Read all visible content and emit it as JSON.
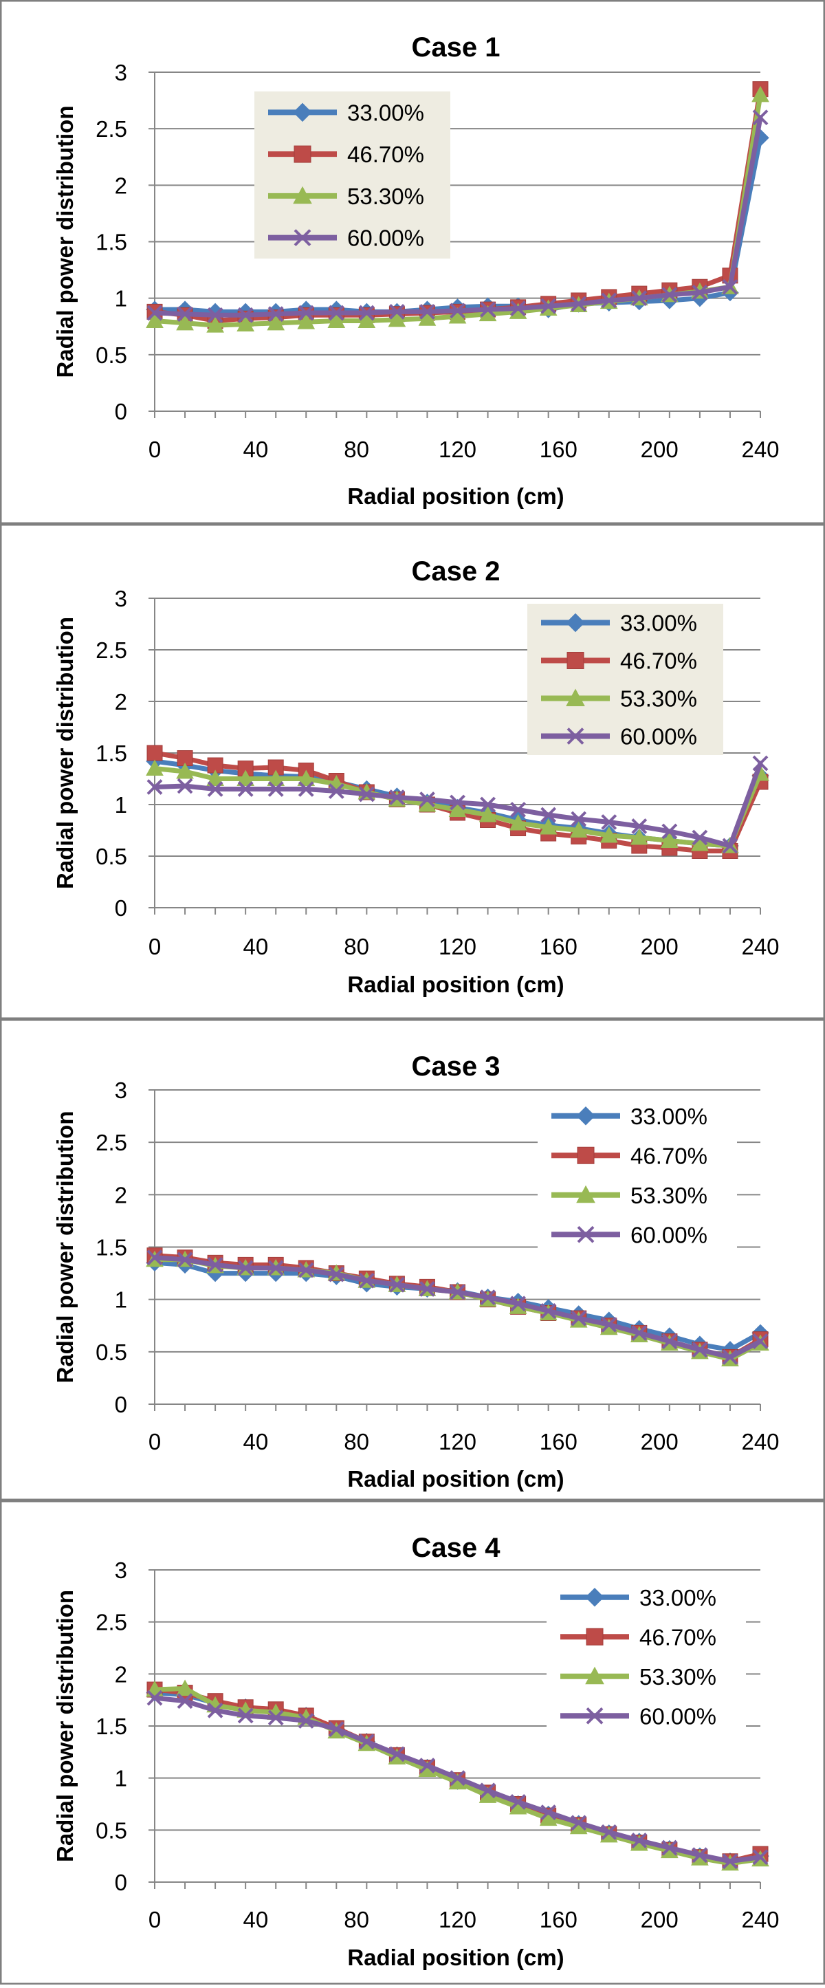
{
  "figure": {
    "panels": [
      "Case 1",
      "Case 2",
      "Case 3",
      "Case 4"
    ]
  },
  "chart_data": [
    {
      "type": "line",
      "title": "Case 1",
      "xlabel": "Radial position (cm)",
      "ylabel": "Radial power distribution",
      "xlim": [
        0,
        240
      ],
      "ylim": [
        0,
        3
      ],
      "xticks": [
        "0",
        "40",
        "80",
        "120",
        "160",
        "200",
        "240"
      ],
      "yticks": [
        "0",
        "0.5",
        "1",
        "1.5",
        "2",
        "2.5",
        "3"
      ],
      "grid": true,
      "legend": {
        "placement": "top-left",
        "boxed": true
      },
      "x": [
        0,
        12,
        24,
        36,
        48,
        60,
        72,
        84,
        96,
        108,
        120,
        132,
        144,
        156,
        168,
        180,
        192,
        204,
        216,
        228,
        240
      ],
      "series": [
        {
          "name": "33.00%",
          "color": "#4a7ebb",
          "marker": "diamond",
          "values": [
            0.9,
            0.9,
            0.88,
            0.88,
            0.88,
            0.9,
            0.9,
            0.88,
            0.88,
            0.9,
            0.92,
            0.93,
            0.93,
            0.9,
            0.95,
            0.96,
            0.97,
            0.98,
            1.0,
            1.05,
            2.42
          ]
        },
        {
          "name": "46.70%",
          "color": "#be4b48",
          "marker": "square",
          "values": [
            0.88,
            0.85,
            0.8,
            0.82,
            0.83,
            0.85,
            0.85,
            0.85,
            0.86,
            0.87,
            0.88,
            0.9,
            0.92,
            0.95,
            0.98,
            1.01,
            1.04,
            1.07,
            1.1,
            1.2,
            2.85
          ]
        },
        {
          "name": "53.30%",
          "color": "#98b954",
          "marker": "triangle",
          "values": [
            0.8,
            0.78,
            0.76,
            0.77,
            0.78,
            0.79,
            0.8,
            0.8,
            0.81,
            0.82,
            0.84,
            0.86,
            0.88,
            0.91,
            0.94,
            0.97,
            1.0,
            1.03,
            1.06,
            1.1,
            2.8
          ]
        },
        {
          "name": "60.00%",
          "color": "#7d5fa0",
          "marker": "x",
          "values": [
            0.87,
            0.86,
            0.85,
            0.85,
            0.86,
            0.87,
            0.87,
            0.87,
            0.88,
            0.88,
            0.89,
            0.9,
            0.91,
            0.93,
            0.95,
            0.98,
            1.0,
            1.03,
            1.05,
            1.1,
            2.6
          ]
        }
      ]
    },
    {
      "type": "line",
      "title": "Case 2",
      "xlabel": "Radial position (cm)",
      "ylabel": "Radial power distribution",
      "xlim": [
        0,
        240
      ],
      "ylim": [
        0,
        3
      ],
      "xticks": [
        "0",
        "40",
        "80",
        "120",
        "160",
        "200",
        "240"
      ],
      "yticks": [
        "0",
        "0.5",
        "1",
        "1.5",
        "2",
        "2.5",
        "3"
      ],
      "grid": true,
      "legend": {
        "placement": "top-right",
        "boxed": true
      },
      "x": [
        0,
        12,
        24,
        36,
        48,
        60,
        72,
        84,
        96,
        108,
        120,
        132,
        144,
        156,
        168,
        180,
        192,
        204,
        216,
        228,
        240
      ],
      "series": [
        {
          "name": "33.00%",
          "color": "#4a7ebb",
          "marker": "diamond",
          "values": [
            1.42,
            1.38,
            1.33,
            1.3,
            1.28,
            1.27,
            1.22,
            1.15,
            1.08,
            1.02,
            0.97,
            0.92,
            0.85,
            0.8,
            0.77,
            0.72,
            0.68,
            0.65,
            0.62,
            0.6,
            1.28
          ]
        },
        {
          "name": "46.70%",
          "color": "#be4b48",
          "marker": "square",
          "values": [
            1.5,
            1.45,
            1.38,
            1.35,
            1.36,
            1.33,
            1.23,
            1.12,
            1.05,
            1.0,
            0.92,
            0.85,
            0.77,
            0.72,
            0.69,
            0.65,
            0.6,
            0.58,
            0.55,
            0.55,
            1.22
          ]
        },
        {
          "name": "53.30%",
          "color": "#98b954",
          "marker": "triangle",
          "values": [
            1.35,
            1.32,
            1.25,
            1.25,
            1.25,
            1.25,
            1.2,
            1.12,
            1.05,
            1.0,
            0.95,
            0.9,
            0.82,
            0.78,
            0.75,
            0.7,
            0.68,
            0.65,
            0.62,
            0.6,
            1.3
          ]
        },
        {
          "name": "60.00%",
          "color": "#7d5fa0",
          "marker": "x",
          "values": [
            1.17,
            1.18,
            1.15,
            1.15,
            1.15,
            1.15,
            1.13,
            1.1,
            1.07,
            1.05,
            1.02,
            1.0,
            0.95,
            0.9,
            0.86,
            0.83,
            0.79,
            0.74,
            0.68,
            0.6,
            1.4
          ]
        }
      ]
    },
    {
      "type": "line",
      "title": "Case 3",
      "xlabel": "Radial position (cm)",
      "ylabel": "Radial power distribution",
      "xlim": [
        0,
        240
      ],
      "ylim": [
        0,
        3
      ],
      "xticks": [
        "0",
        "40",
        "80",
        "120",
        "160",
        "200",
        "240"
      ],
      "yticks": [
        "0",
        "0.5",
        "1",
        "1.5",
        "2",
        "2.5",
        "3"
      ],
      "grid": true,
      "legend": {
        "placement": "top-right",
        "boxed": false
      },
      "x": [
        0,
        12,
        24,
        36,
        48,
        60,
        72,
        84,
        96,
        108,
        120,
        132,
        144,
        156,
        168,
        180,
        192,
        204,
        216,
        228,
        240
      ],
      "series": [
        {
          "name": "33.00%",
          "color": "#4a7ebb",
          "marker": "diamond",
          "values": [
            1.35,
            1.33,
            1.25,
            1.25,
            1.25,
            1.25,
            1.22,
            1.15,
            1.12,
            1.1,
            1.08,
            1.02,
            0.98,
            0.92,
            0.86,
            0.8,
            0.72,
            0.65,
            0.57,
            0.52,
            0.68
          ]
        },
        {
          "name": "46.70%",
          "color": "#be4b48",
          "marker": "square",
          "values": [
            1.42,
            1.4,
            1.35,
            1.33,
            1.33,
            1.3,
            1.25,
            1.2,
            1.15,
            1.12,
            1.07,
            1.0,
            0.93,
            0.87,
            0.82,
            0.75,
            0.68,
            0.6,
            0.52,
            0.45,
            0.62
          ]
        },
        {
          "name": "53.30%",
          "color": "#98b954",
          "marker": "triangle",
          "values": [
            1.38,
            1.38,
            1.32,
            1.3,
            1.3,
            1.28,
            1.25,
            1.18,
            1.14,
            1.1,
            1.07,
            1.0,
            0.93,
            0.87,
            0.8,
            0.73,
            0.66,
            0.58,
            0.5,
            0.43,
            0.58
          ]
        },
        {
          "name": "60.00%",
          "color": "#7d5fa0",
          "marker": "x",
          "values": [
            1.4,
            1.38,
            1.33,
            1.3,
            1.3,
            1.28,
            1.24,
            1.18,
            1.14,
            1.1,
            1.07,
            1.02,
            0.96,
            0.89,
            0.82,
            0.76,
            0.68,
            0.6,
            0.52,
            0.45,
            0.6
          ]
        }
      ]
    },
    {
      "type": "line",
      "title": "Case 4",
      "xlabel": "Radial position (cm)",
      "ylabel": "Radial power distribution",
      "xlim": [
        0,
        240
      ],
      "ylim": [
        0,
        3
      ],
      "xticks": [
        "0",
        "40",
        "80",
        "120",
        "160",
        "200",
        "240"
      ],
      "yticks": [
        "0",
        "0.5",
        "1",
        "1.5",
        "2",
        "2.5",
        "3"
      ],
      "grid": true,
      "legend": {
        "placement": "top-right",
        "boxed": false
      },
      "x": [
        0,
        12,
        24,
        36,
        48,
        60,
        72,
        84,
        96,
        108,
        120,
        132,
        144,
        156,
        168,
        180,
        192,
        204,
        216,
        228,
        240
      ],
      "series": [
        {
          "name": "33.00%",
          "color": "#4a7ebb",
          "marker": "diamond",
          "values": [
            1.82,
            1.8,
            1.72,
            1.68,
            1.65,
            1.6,
            1.47,
            1.35,
            1.22,
            1.1,
            0.97,
            0.85,
            0.75,
            0.65,
            0.56,
            0.47,
            0.39,
            0.32,
            0.25,
            0.2,
            0.25
          ]
        },
        {
          "name": "46.70%",
          "color": "#be4b48",
          "marker": "square",
          "values": [
            1.85,
            1.82,
            1.74,
            1.68,
            1.66,
            1.6,
            1.48,
            1.35,
            1.22,
            1.1,
            0.98,
            0.86,
            0.75,
            0.64,
            0.55,
            0.46,
            0.38,
            0.31,
            0.24,
            0.2,
            0.27
          ]
        },
        {
          "name": "53.30%",
          "color": "#98b954",
          "marker": "triangle",
          "values": [
            1.85,
            1.86,
            1.7,
            1.65,
            1.63,
            1.58,
            1.45,
            1.33,
            1.2,
            1.08,
            0.96,
            0.83,
            0.72,
            0.61,
            0.53,
            0.45,
            0.37,
            0.3,
            0.23,
            0.18,
            0.22
          ]
        },
        {
          "name": "60.00%",
          "color": "#7d5fa0",
          "marker": "x",
          "values": [
            1.77,
            1.74,
            1.65,
            1.6,
            1.58,
            1.55,
            1.47,
            1.35,
            1.23,
            1.12,
            1.0,
            0.88,
            0.77,
            0.67,
            0.57,
            0.48,
            0.4,
            0.33,
            0.26,
            0.2,
            0.24
          ]
        }
      ]
    }
  ]
}
